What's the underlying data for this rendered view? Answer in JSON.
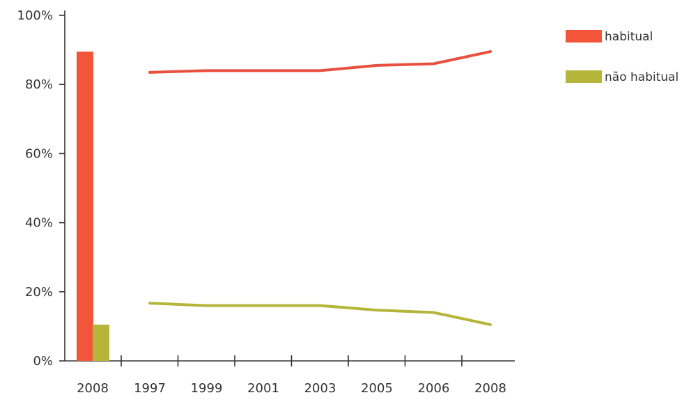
{
  "chart_data": {
    "type": "bar+line",
    "y_ticks": [
      "0%",
      "20%",
      "40%",
      "60%",
      "80%",
      "100%"
    ],
    "ylim": [
      0,
      100
    ],
    "grid": false,
    "legend_position": "top-right",
    "legend": [
      {
        "label": "habitual",
        "color": "#f2553a"
      },
      {
        "label": "não habitual",
        "color": "#b5b53b"
      }
    ],
    "bar_group": {
      "category": "2008",
      "values": [
        {
          "series": "habitual",
          "value": 89.5,
          "color": "#f2553a"
        },
        {
          "series": "não habitual",
          "value": 10.5,
          "color": "#b5b53b"
        }
      ]
    },
    "line_x": [
      "1997",
      "1999",
      "2001",
      "2003",
      "2005",
      "2006",
      "2008"
    ],
    "series": [
      {
        "name": "habitual",
        "color": "#e8503f",
        "values": [
          83.5,
          84.0,
          84.0,
          84.0,
          85.5,
          86.0,
          89.5
        ]
      },
      {
        "name": "não habitual",
        "color": "#b5b53b",
        "values": [
          16.7,
          16.0,
          16.0,
          16.0,
          14.7,
          14.0,
          10.5
        ]
      }
    ]
  }
}
